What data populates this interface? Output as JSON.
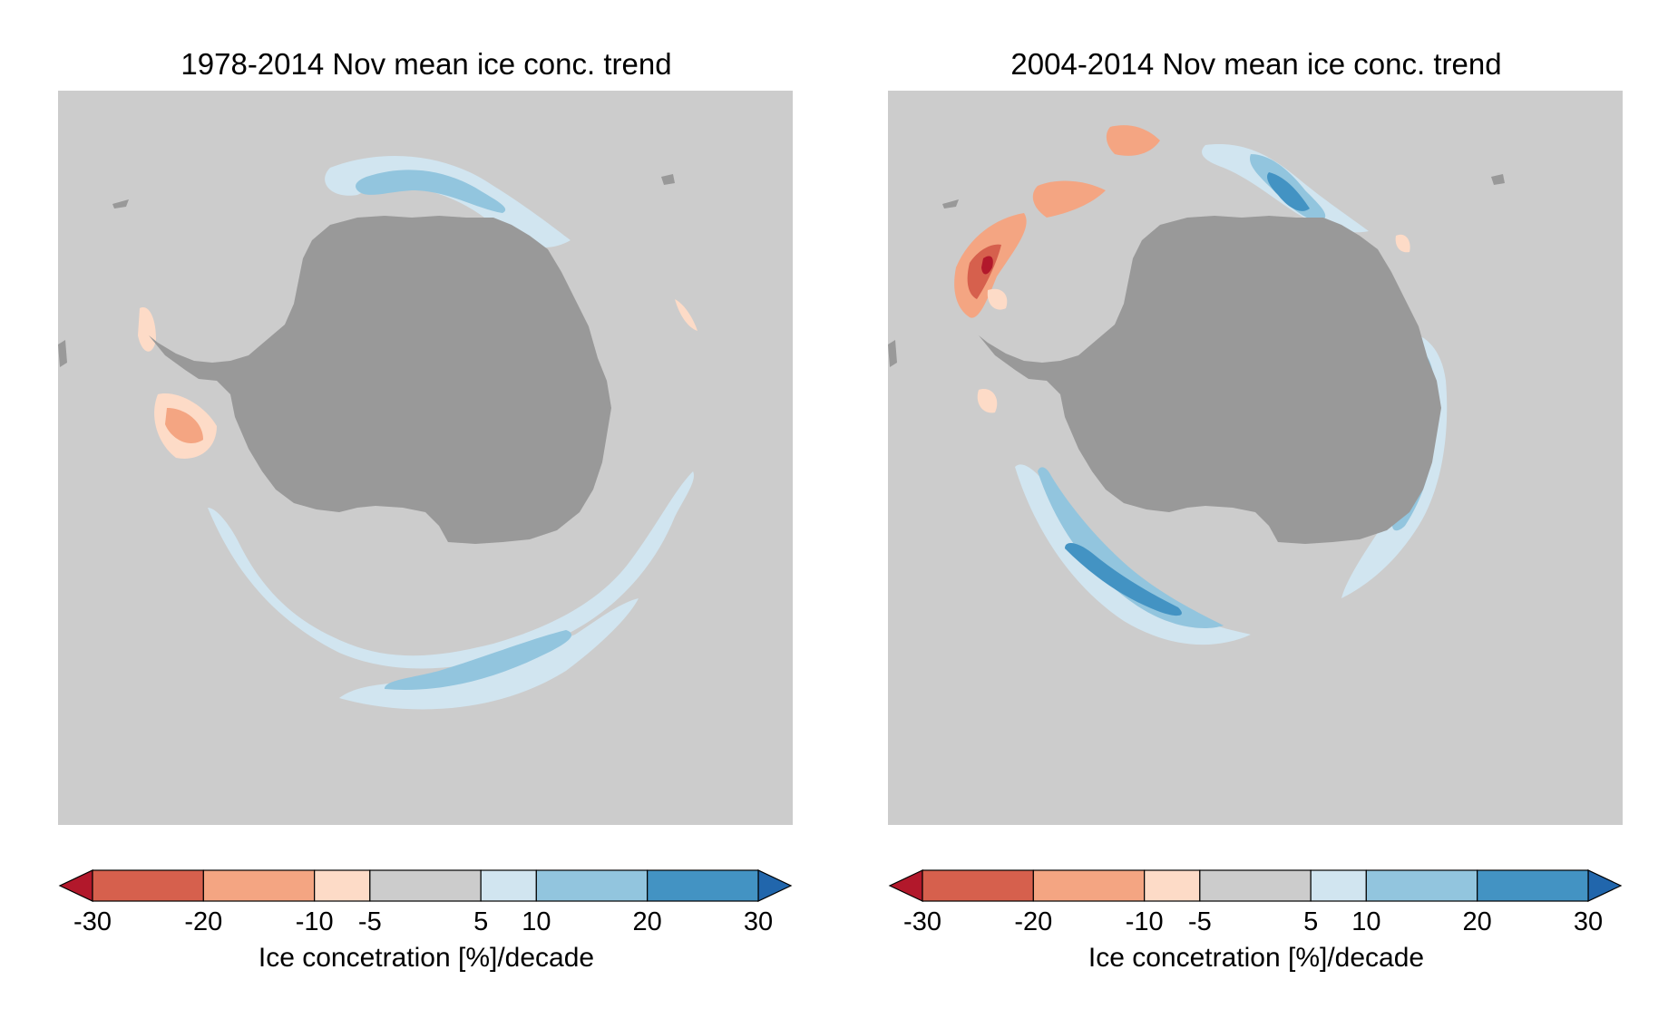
{
  "panels": [
    {
      "title": "1978-2014 Nov mean ice conc. trend",
      "colorbar": {
        "label": "Ice concetration [%]/decade",
        "ticks": [
          "-30",
          "-20",
          "-10",
          "-5",
          "5",
          "10",
          "20",
          "30"
        ]
      }
    },
    {
      "title": "2004-2014 Nov mean ice conc. trend",
      "colorbar": {
        "label": "Ice concetration [%]/decade",
        "ticks": [
          "-30",
          "-20",
          "-10",
          "-5",
          "5",
          "10",
          "20",
          "30"
        ]
      }
    }
  ],
  "colorbar_scale": {
    "bounds": [
      -30,
      -20,
      -10,
      -5,
      5,
      10,
      20,
      30
    ],
    "colors": [
      "#d6604d",
      "#f4a582",
      "#fddbc7",
      "#cccccc",
      "#d1e5f0",
      "#92c5de",
      "#4393c3"
    ],
    "extend_min_color": "#b2182b",
    "extend_max_color": "#2166ac"
  },
  "map_colors": {
    "ocean": "#cccccc",
    "land": "#999999"
  }
}
